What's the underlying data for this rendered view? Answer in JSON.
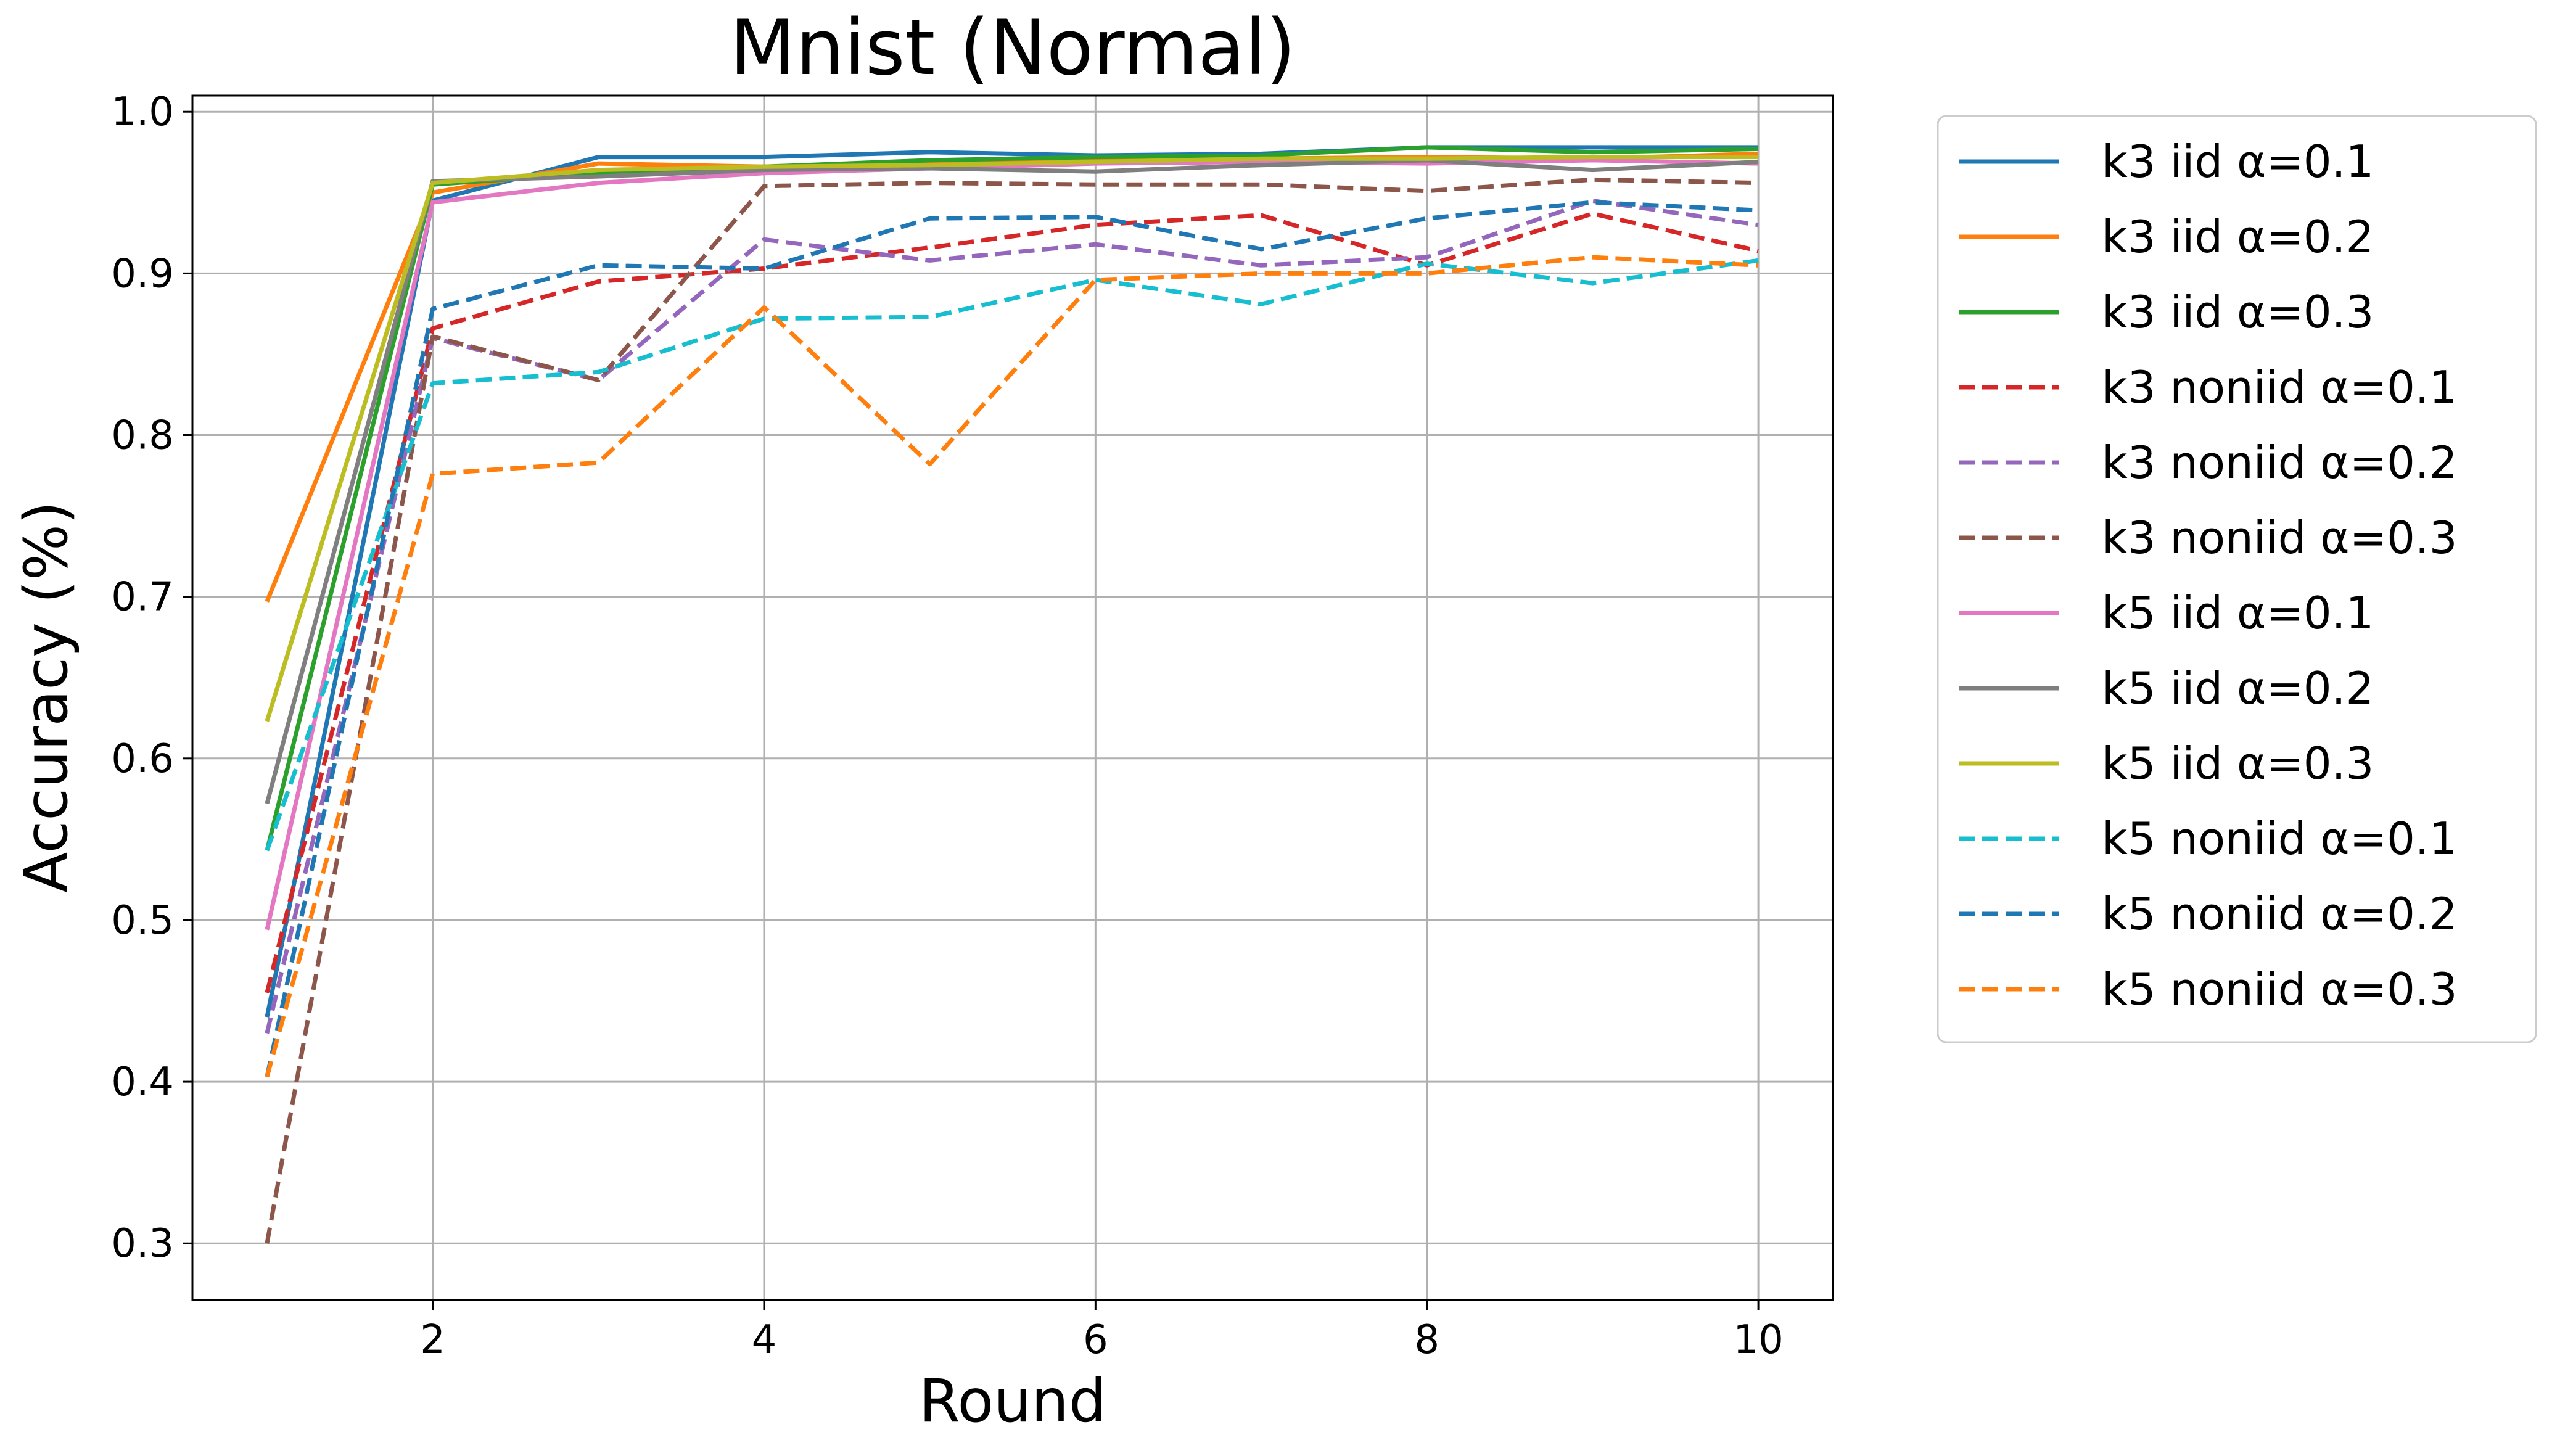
{
  "chart_data": {
    "type": "line",
    "title": "Mnist (Normal)",
    "xlabel": "Round",
    "ylabel": "Accuracy (%)",
    "xlim": [
      0.55,
      10.45
    ],
    "ylim": [
      0.265,
      1.01
    ],
    "x_ticks": [
      2,
      4,
      6,
      8,
      10
    ],
    "y_ticks": [
      0.3,
      0.4,
      0.5,
      0.6,
      0.7,
      0.8,
      0.9,
      1.0
    ],
    "grid": true,
    "legend_position": "outside-right",
    "x": [
      1,
      2,
      3,
      4,
      5,
      6,
      7,
      8,
      9,
      10
    ],
    "series": [
      {
        "name": "k3 iid α=0.1",
        "color": "#1f77b4",
        "dash": "solid",
        "values": [
          0.44,
          0.945,
          0.972,
          0.972,
          0.975,
          0.973,
          0.974,
          0.978,
          0.978,
          0.978
        ]
      },
      {
        "name": "k3 iid α=0.2",
        "color": "#ff7f0e",
        "dash": "solid",
        "values": [
          0.697,
          0.95,
          0.968,
          0.966,
          0.969,
          0.97,
          0.971,
          0.972,
          0.971,
          0.974
        ]
      },
      {
        "name": "k3 iid α=0.3",
        "color": "#2ca02c",
        "dash": "solid",
        "values": [
          0.543,
          0.955,
          0.962,
          0.966,
          0.97,
          0.972,
          0.973,
          0.978,
          0.975,
          0.977
        ]
      },
      {
        "name": "k3 noniid α=0.1",
        "color": "#d62728",
        "dash": "dashed",
        "values": [
          0.455,
          0.866,
          0.895,
          0.903,
          0.916,
          0.93,
          0.936,
          0.905,
          0.937,
          0.914
        ]
      },
      {
        "name": "k3 noniid α=0.2",
        "color": "#9467bd",
        "dash": "dashed",
        "values": [
          0.43,
          0.86,
          0.834,
          0.921,
          0.908,
          0.918,
          0.905,
          0.91,
          0.945,
          0.93
        ]
      },
      {
        "name": "k3 noniid α=0.3",
        "color": "#8c564b",
        "dash": "dashed",
        "values": [
          0.3,
          0.861,
          0.834,
          0.954,
          0.956,
          0.955,
          0.955,
          0.951,
          0.958,
          0.956
        ]
      },
      {
        "name": "k5 iid α=0.1",
        "color": "#e377c2",
        "dash": "solid",
        "values": [
          0.494,
          0.944,
          0.956,
          0.962,
          0.965,
          0.968,
          0.969,
          0.968,
          0.97,
          0.968
        ]
      },
      {
        "name": "k5 iid α=0.2",
        "color": "#7f7f7f",
        "dash": "solid",
        "values": [
          0.572,
          0.957,
          0.96,
          0.964,
          0.965,
          0.963,
          0.967,
          0.97,
          0.964,
          0.969
        ]
      },
      {
        "name": "k5 iid α=0.3",
        "color": "#bcbd22",
        "dash": "solid",
        "values": [
          0.623,
          0.956,
          0.964,
          0.966,
          0.967,
          0.969,
          0.971,
          0.971,
          0.972,
          0.972
        ]
      },
      {
        "name": "k5 noniid α=0.1",
        "color": "#17becf",
        "dash": "dashed",
        "values": [
          0.543,
          0.832,
          0.839,
          0.872,
          0.873,
          0.896,
          0.881,
          0.906,
          0.894,
          0.908
        ]
      },
      {
        "name": "k5 noniid α=0.2",
        "color": "#1f77b4",
        "dash": "dashed",
        "values": [
          0.403,
          0.878,
          0.905,
          0.903,
          0.934,
          0.935,
          0.915,
          0.934,
          0.944,
          0.939
        ]
      },
      {
        "name": "k5 noniid α=0.3",
        "color": "#ff7f0e",
        "dash": "dashed",
        "values": [
          0.403,
          0.776,
          0.783,
          0.879,
          0.782,
          0.896,
          0.9,
          0.9,
          0.91,
          0.905
        ]
      }
    ]
  }
}
